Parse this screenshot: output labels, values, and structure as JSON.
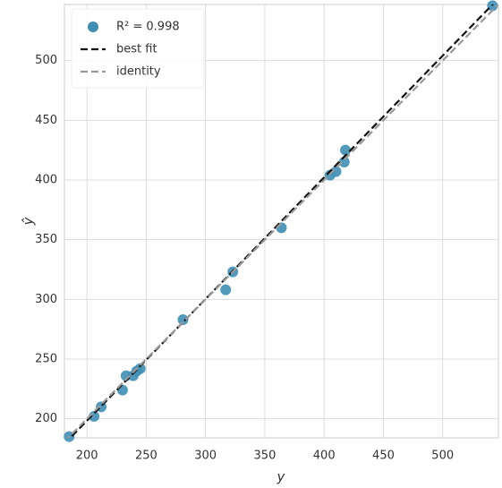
{
  "chart_data": {
    "type": "scatter",
    "x_label": "y",
    "y_label": "ŷ",
    "xlim": [
      181,
      547
    ],
    "ylim": [
      184,
      547
    ],
    "xticks": [
      200,
      250,
      300,
      350,
      400,
      450,
      500
    ],
    "yticks": [
      200,
      250,
      300,
      350,
      400,
      450,
      500
    ],
    "grid": true,
    "legend": "upper left",
    "series": [
      {
        "name": "R² = 0.998",
        "type": "scatter",
        "color": "#3f8fb5",
        "x": [
          185,
          206,
          212,
          230,
          233,
          239,
          242,
          245,
          281,
          317,
          323,
          364,
          405,
          410,
          417,
          418,
          542
        ],
        "values": [
          185,
          202,
          210,
          224,
          236,
          236,
          240,
          242,
          283,
          308,
          323,
          360,
          404,
          407,
          415,
          425,
          546
        ]
      },
      {
        "name": "best fit",
        "type": "line",
        "color": "#111111",
        "dash": true,
        "x": [
          181,
          547
        ],
        "values": [
          179,
          552
        ]
      },
      {
        "name": "identity",
        "type": "line",
        "color": "#999999",
        "dash": true,
        "x": [
          181,
          547
        ],
        "values": [
          181,
          547
        ]
      }
    ]
  }
}
